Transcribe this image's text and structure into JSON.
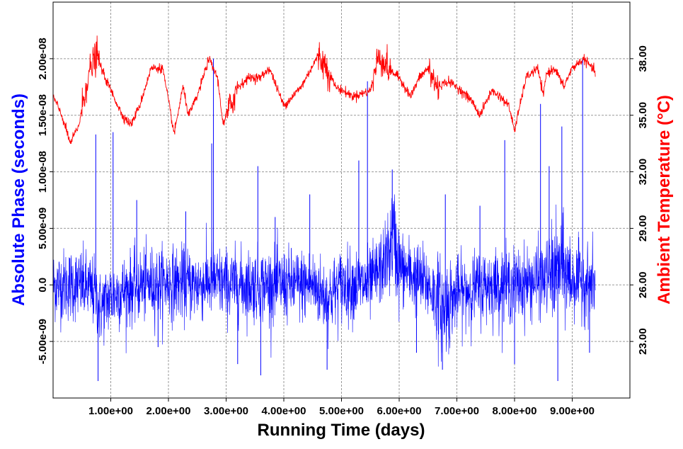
{
  "chart_data": {
    "type": "line",
    "title": "",
    "xlabel": "Running Time (days)",
    "ylabel_left": "Absolute Phase (seconds)",
    "ylabel_right": "Ambient Temperature (°C)",
    "xlim": [
      0.0,
      10.0
    ],
    "ylim_left": [
      -1e-08,
      2.5e-08
    ],
    "ylim_right": [
      20.0,
      41.0
    ],
    "grid": true,
    "x_ticks": [
      {
        "value": 1,
        "label": "1.00e+00"
      },
      {
        "value": 2,
        "label": "2.00e+00"
      },
      {
        "value": 3,
        "label": "3.00e+00"
      },
      {
        "value": 4,
        "label": "4.00e+00"
      },
      {
        "value": 5,
        "label": "5.00e+00"
      },
      {
        "value": 6,
        "label": "6.00e+00"
      },
      {
        "value": 7,
        "label": "7.00e+00"
      },
      {
        "value": 8,
        "label": "8.00e+00"
      },
      {
        "value": 9,
        "label": "9.00e+00"
      }
    ],
    "y_left_ticks": [
      {
        "value": -5e-09,
        "label": "-5.00e-09"
      },
      {
        "value": 0,
        "label": "0.0"
      },
      {
        "value": 5e-09,
        "label": "5.00e-09"
      },
      {
        "value": 1e-08,
        "label": "1.00e-08"
      },
      {
        "value": 1.5e-08,
        "label": "1.50e-08"
      },
      {
        "value": 2e-08,
        "label": "2.00e-08"
      }
    ],
    "y_right_ticks": [
      {
        "value": 23,
        "label": "23.00"
      },
      {
        "value": 26,
        "label": "26.00"
      },
      {
        "value": 29,
        "label": "29.00"
      },
      {
        "value": 32,
        "label": "32.00"
      },
      {
        "value": 35,
        "label": "35.00"
      },
      {
        "value": 38,
        "label": "38.00"
      }
    ],
    "series": [
      {
        "axis": "left",
        "color": "#0000ff",
        "noise_sigma_seconds": 1.6e-09,
        "x": [
          0.0,
          0.5,
          0.75,
          0.8,
          1.0,
          1.5,
          2.0,
          2.5,
          2.75,
          3.0,
          3.5,
          4.0,
          4.5,
          4.75,
          5.0,
          5.5,
          5.8,
          5.9,
          6.0,
          6.5,
          6.75,
          7.0,
          7.5,
          8.0,
          8.5,
          8.8,
          9.0,
          9.4
        ],
        "baseline": [
          0.0,
          0.0,
          -8e-10,
          -2.2e-09,
          -1e-09,
          0.0,
          2e-10,
          0.0,
          4e-10,
          0.0,
          0.0,
          0.0,
          0.0,
          -1.2e-09,
          0.0,
          0.0,
          2.5e-09,
          4.5e-09,
          1.5e-09,
          0.0,
          -2.2e-09,
          -8e-10,
          0.0,
          0.0,
          5e-10,
          1.5e-09,
          5e-10,
          0.0
        ],
        "spikes": [
          {
            "x": 0.74,
            "y": 1.33e-08
          },
          {
            "x": 0.78,
            "y": -8.5e-09
          },
          {
            "x": 1.04,
            "y": 1.35e-08
          },
          {
            "x": 1.45,
            "y": 7.5e-09
          },
          {
            "x": 1.82,
            "y": -5.5e-09
          },
          {
            "x": 2.3,
            "y": 6.5e-09
          },
          {
            "x": 2.75,
            "y": 1.25e-08
          },
          {
            "x": 2.78,
            "y": 2e-08
          },
          {
            "x": 3.2,
            "y": -7e-09
          },
          {
            "x": 3.55,
            "y": 1.05e-08
          },
          {
            "x": 3.6,
            "y": -8e-09
          },
          {
            "x": 3.85,
            "y": 6e-09
          },
          {
            "x": 4.45,
            "y": 8e-09
          },
          {
            "x": 4.75,
            "y": -7.5e-09
          },
          {
            "x": 5.3,
            "y": 1.1e-08
          },
          {
            "x": 5.45,
            "y": 1.8e-08
          },
          {
            "x": 5.88,
            "y": 1.02e-08
          },
          {
            "x": 6.3,
            "y": -6e-09
          },
          {
            "x": 6.75,
            "y": -7.5e-09
          },
          {
            "x": 6.8,
            "y": 8e-09
          },
          {
            "x": 7.4,
            "y": 7e-09
          },
          {
            "x": 7.83,
            "y": 1.28e-08
          },
          {
            "x": 8.0,
            "y": -7e-09
          },
          {
            "x": 8.45,
            "y": 1.6e-08
          },
          {
            "x": 8.6,
            "y": 1.05e-08
          },
          {
            "x": 8.75,
            "y": -8.5e-09
          },
          {
            "x": 8.82,
            "y": 1.4e-08
          },
          {
            "x": 9.18,
            "y": 2e-08
          },
          {
            "x": 9.3,
            "y": -6e-09
          }
        ]
      },
      {
        "axis": "right",
        "color": "#ff0000",
        "x": [
          0.0,
          0.15,
          0.3,
          0.45,
          0.6,
          0.75,
          0.9,
          1.2,
          1.35,
          1.5,
          1.7,
          1.9,
          2.1,
          2.25,
          2.35,
          2.5,
          2.7,
          2.85,
          2.95,
          3.2,
          3.4,
          3.6,
          3.75,
          4.0,
          4.3,
          4.6,
          4.75,
          4.9,
          5.2,
          5.5,
          5.65,
          5.8,
          6.0,
          6.2,
          6.35,
          6.5,
          6.65,
          6.85,
          7.0,
          7.25,
          7.4,
          7.6,
          7.75,
          7.9,
          8.0,
          8.2,
          8.4,
          8.5,
          8.55,
          8.7,
          8.85,
          9.0,
          9.2,
          9.4
        ],
        "values": [
          36.0,
          35.0,
          33.5,
          34.5,
          37.0,
          38.2,
          37.0,
          35.0,
          34.5,
          35.5,
          37.5,
          37.5,
          34.0,
          36.5,
          35.0,
          36.0,
          38.0,
          37.0,
          34.5,
          36.5,
          37.0,
          37.0,
          37.5,
          35.5,
          36.5,
          38.2,
          37.5,
          36.5,
          36.0,
          36.3,
          38.2,
          37.5,
          37.0,
          36.0,
          37.0,
          37.5,
          36.5,
          36.8,
          36.5,
          35.8,
          35.0,
          36.3,
          36.0,
          35.5,
          34.2,
          37.0,
          37.5,
          36.0,
          37.2,
          37.5,
          36.5,
          37.5,
          38.0,
          37.3
        ]
      }
    ]
  }
}
